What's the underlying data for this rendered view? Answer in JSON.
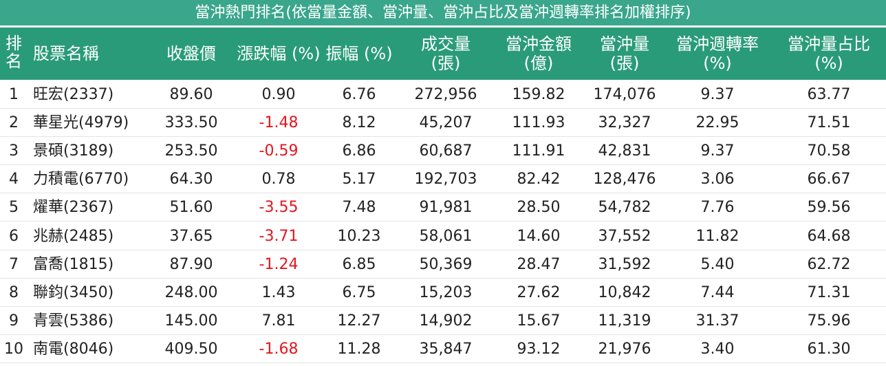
{
  "title": "當沖熱門排名(依當量金額、當沖量、當沖占比及當沖週轉率排名加權排序)",
  "table": {
    "header": [
      [
        "排",
        "名"
      ],
      [
        "股票名稱"
      ],
      [
        "收盤價"
      ],
      [
        "漲跌幅 (%)"
      ],
      [
        "振幅 (%)"
      ],
      [
        "成交量",
        "(張)"
      ],
      [
        "當沖金額",
        "(億)"
      ],
      [
        "當沖量",
        "(張)"
      ],
      [
        "當沖週轉率",
        "(%)"
      ],
      [
        "當沖量占比",
        "(%)"
      ]
    ],
    "rows": [
      [
        "1",
        "旺宏(2337)",
        "89.60",
        "0.90",
        "6.76",
        "272,956",
        "159.82",
        "174,076",
        "9.37",
        "63.77"
      ],
      [
        "2",
        "華星光(4979)",
        "333.50",
        "-1.48",
        "8.12",
        "45,207",
        "111.93",
        "32,327",
        "22.95",
        "71.51"
      ],
      [
        "3",
        "景碩(3189)",
        "253.50",
        "-0.59",
        "6.86",
        "60,687",
        "111.91",
        "42,831",
        "9.37",
        "70.58"
      ],
      [
        "4",
        "力積電(6770)",
        "64.30",
        "0.78",
        "5.17",
        "192,703",
        "82.42",
        "128,476",
        "3.06",
        "66.67"
      ],
      [
        "5",
        "燿華(2367)",
        "51.60",
        "-3.55",
        "7.48",
        "91,981",
        "28.50",
        "54,782",
        "7.76",
        "59.56"
      ],
      [
        "6",
        "兆赫(2485)",
        "37.65",
        "-3.71",
        "10.23",
        "58,061",
        "14.60",
        "37,552",
        "11.82",
        "64.68"
      ],
      [
        "7",
        "富喬(1815)",
        "87.90",
        "-1.24",
        "6.85",
        "50,369",
        "28.47",
        "31,592",
        "5.40",
        "62.72"
      ],
      [
        "8",
        "聯鈞(3450)",
        "248.00",
        "1.43",
        "6.75",
        "15,203",
        "27.62",
        "10,842",
        "7.44",
        "71.31"
      ],
      [
        "9",
        "青雲(5386)",
        "145.00",
        "7.81",
        "12.27",
        "14,902",
        "15.67",
        "11,319",
        "31.37",
        "75.96"
      ],
      [
        "10",
        "南電(8046)",
        "409.50",
        "-1.68",
        "11.28",
        "35,847",
        "93.12",
        "21,976",
        "3.40",
        "61.30"
      ]
    ]
  }
}
